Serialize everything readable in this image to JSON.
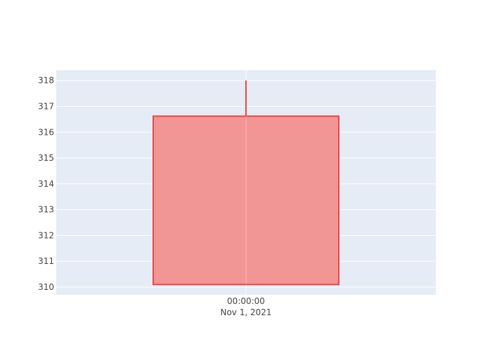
{
  "chart_data": {
    "type": "candlestick",
    "x_tick_labels": [
      {
        "time": "00:00:00",
        "date": "Nov 1, 2021"
      }
    ],
    "candles": [
      {
        "date": "2021-11-01",
        "open": 316.62,
        "high": 318.0,
        "low": 310.1,
        "close": 310.1,
        "direction": "decreasing"
      }
    ],
    "y_ticks": [
      310,
      311,
      312,
      313,
      314,
      315,
      316,
      317,
      318
    ],
    "ylim": [
      309.7,
      318.4
    ],
    "grid": true,
    "colors": {
      "plot_bg": "#E5ECF6",
      "grid": "#FFFFFF",
      "decreasing_line": "#EF4444",
      "decreasing_fill": "#F29695",
      "tick_text": "#444444"
    }
  }
}
